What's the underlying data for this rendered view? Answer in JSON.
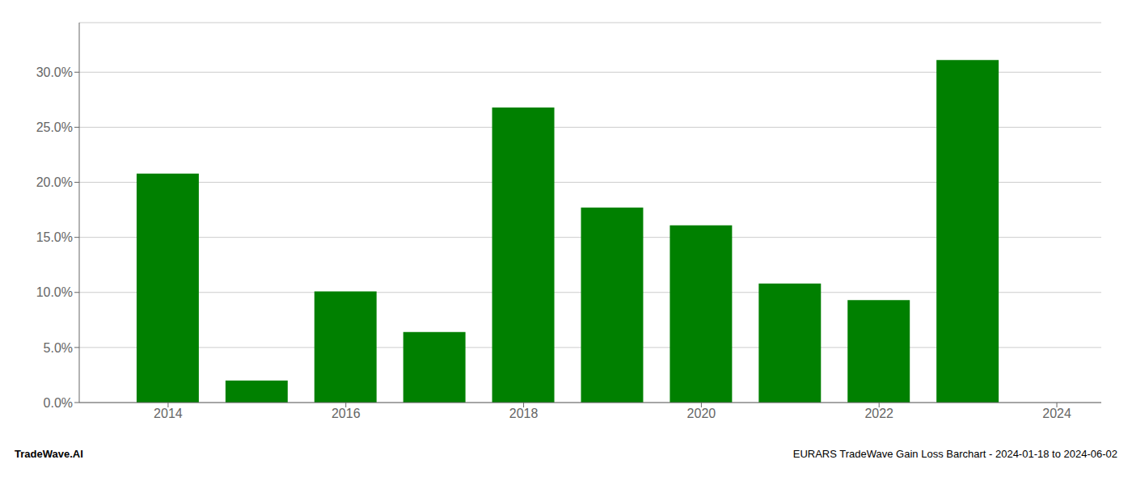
{
  "chart_data": {
    "type": "bar",
    "x": [
      2014,
      2015,
      2016,
      2017,
      2018,
      2019,
      2020,
      2021,
      2022,
      2023
    ],
    "values": [
      0.208,
      0.02,
      0.101,
      0.064,
      0.268,
      0.177,
      0.161,
      0.108,
      0.093,
      0.311
    ],
    "color": "#008000",
    "xlim": [
      2013.0,
      2024.5
    ],
    "xticks": [
      2014,
      2016,
      2018,
      2020,
      2022,
      2024
    ],
    "ylim": [
      0,
      0.345
    ],
    "yticks": [
      {
        "value": 0.0,
        "label": "0.0%"
      },
      {
        "value": 0.05,
        "label": "5.0%"
      },
      {
        "value": 0.1,
        "label": "10.0%"
      },
      {
        "value": 0.15,
        "label": "15.0%"
      },
      {
        "value": 0.2,
        "label": "20.0%"
      },
      {
        "value": 0.25,
        "label": "25.0%"
      },
      {
        "value": 0.3,
        "label": "30.0%"
      }
    ],
    "grid": true,
    "annotations": [
      "TradeWave.AI",
      "EURARS TradeWave Gain Loss Barchart - 2024-01-18 to 2024-06-02"
    ]
  }
}
